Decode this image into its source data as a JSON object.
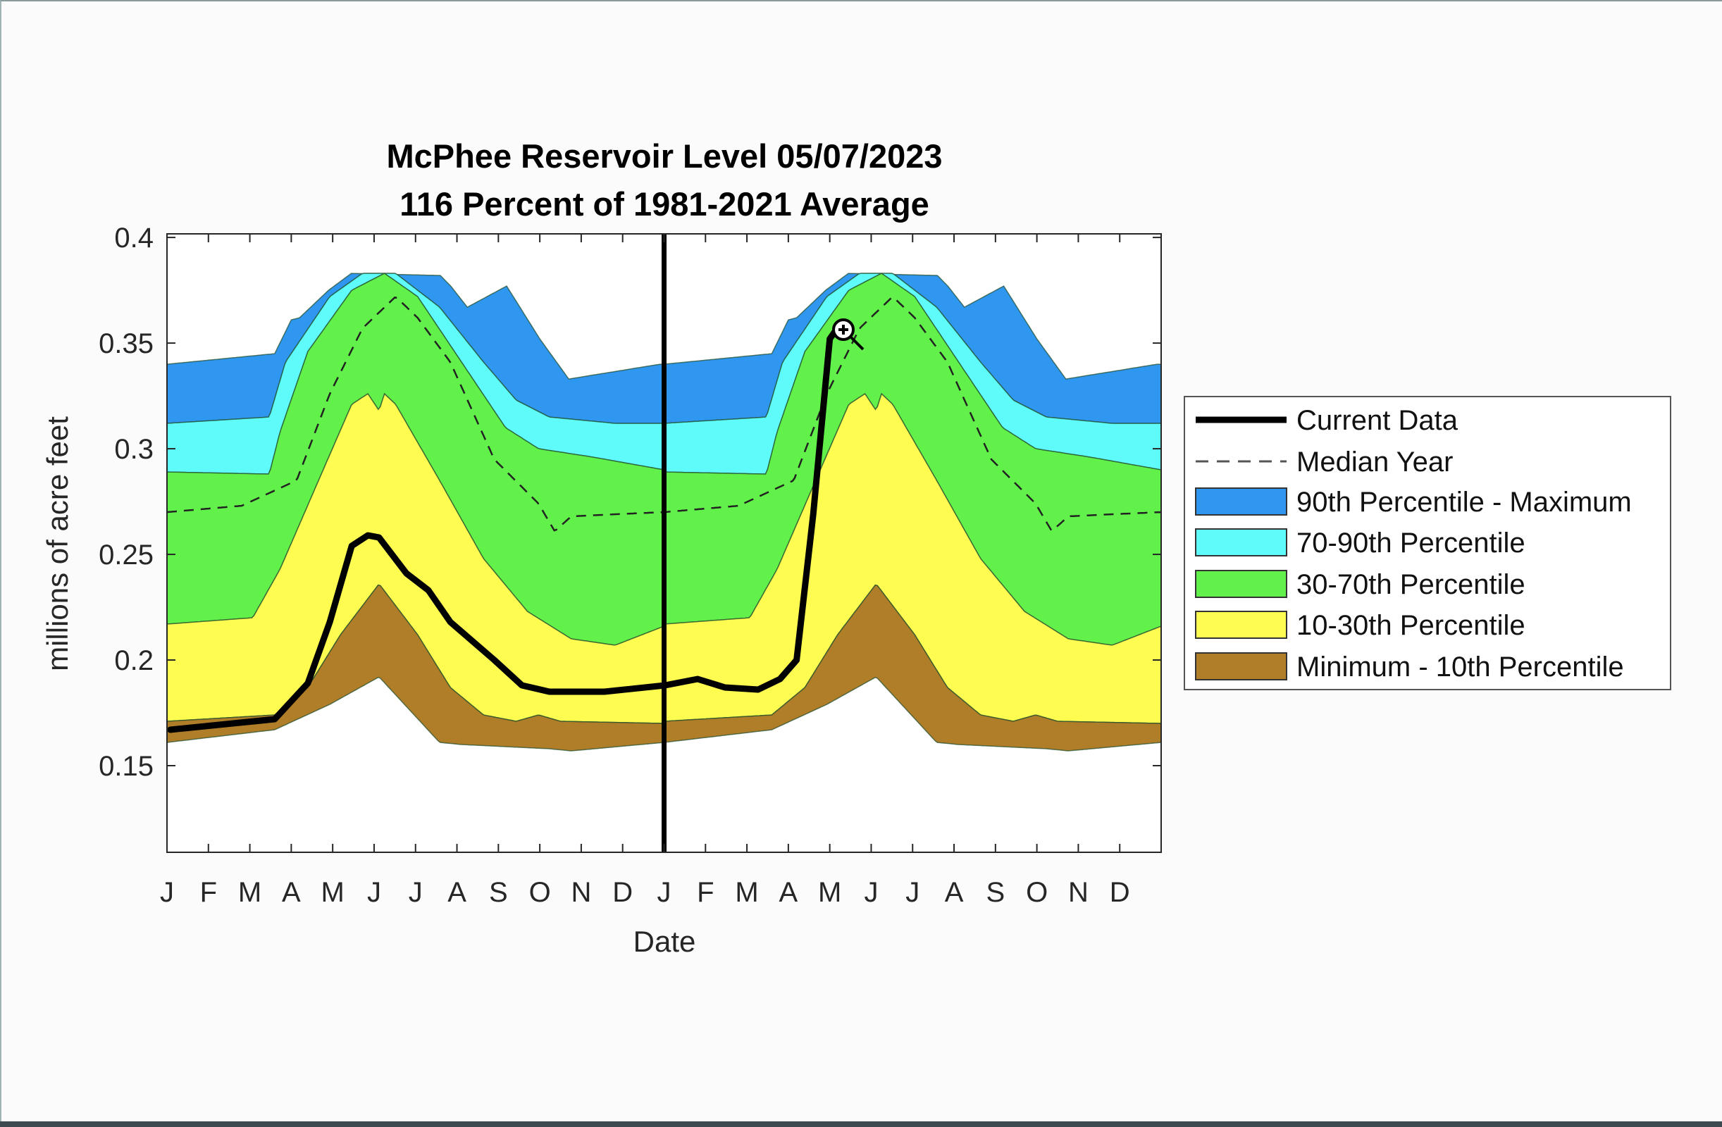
{
  "chart_data": {
    "type": "area",
    "title": "McPhee Reservoir Level 05/07/2023",
    "subtitle": "116 Percent of 1981-2021 Average",
    "xlabel": "Date",
    "ylabel": "millions of acre feet",
    "ylim": [
      0.109,
      0.4017
    ],
    "xlim_months": [
      0,
      24
    ],
    "x_tick_labels": [
      "J",
      "F",
      "M",
      "A",
      "M",
      "J",
      "J",
      "A",
      "S",
      "O",
      "N",
      "D",
      "J",
      "F",
      "M",
      "A",
      "M",
      "J",
      "J",
      "A",
      "S",
      "O",
      "N",
      "D"
    ],
    "y_ticks": [
      0.15,
      0.2,
      0.25,
      0.3,
      0.35,
      0.4
    ],
    "y_tick_labels": [
      "0.15",
      "0.2",
      "0.25",
      "0.3",
      "0.35",
      "0.4"
    ],
    "year_divider_month": 12,
    "percentile_boundaries_one_year": {
      "maximum": [
        [
          0,
          0.34
        ],
        [
          2.6,
          0.345
        ],
        [
          3.0,
          0.361
        ],
        [
          3.2,
          0.362
        ],
        [
          3.9,
          0.375
        ],
        [
          4.45,
          0.383
        ],
        [
          6.6,
          0.382
        ],
        [
          6.85,
          0.377
        ],
        [
          7.25,
          0.367
        ],
        [
          8.2,
          0.377
        ],
        [
          9.0,
          0.352
        ],
        [
          9.7,
          0.333
        ],
        [
          11.9,
          0.34
        ],
        [
          12,
          0.34
        ]
      ],
      "p90": [
        [
          0,
          0.312
        ],
        [
          2.47,
          0.315
        ],
        [
          2.86,
          0.341
        ],
        [
          3.93,
          0.372
        ],
        [
          4.72,
          0.383
        ],
        [
          5.52,
          0.383
        ],
        [
          6.58,
          0.367
        ],
        [
          7.64,
          0.341
        ],
        [
          8.43,
          0.323
        ],
        [
          9.23,
          0.315
        ],
        [
          10.82,
          0.312
        ],
        [
          12,
          0.312
        ]
      ],
      "p70": [
        [
          0,
          0.289
        ],
        [
          2.47,
          0.288
        ],
        [
          2.73,
          0.308
        ],
        [
          3.4,
          0.346
        ],
        [
          4.46,
          0.375
        ],
        [
          5.25,
          0.383
        ],
        [
          6.05,
          0.372
        ],
        [
          7.11,
          0.341
        ],
        [
          8.17,
          0.31
        ],
        [
          8.97,
          0.3
        ],
        [
          10.29,
          0.296
        ],
        [
          12,
          0.29
        ]
      ],
      "p30": [
        [
          0,
          0.217
        ],
        [
          2.07,
          0.22
        ],
        [
          2.73,
          0.243
        ],
        [
          3.66,
          0.285
        ],
        [
          4.46,
          0.321
        ],
        [
          4.85,
          0.326
        ],
        [
          5.12,
          0.318
        ],
        [
          5.25,
          0.326
        ],
        [
          5.52,
          0.321
        ],
        [
          6.58,
          0.285
        ],
        [
          7.64,
          0.248
        ],
        [
          8.7,
          0.223
        ],
        [
          9.76,
          0.21
        ],
        [
          10.82,
          0.207
        ],
        [
          12,
          0.216
        ]
      ],
      "median": [
        [
          0,
          0.27
        ],
        [
          1.8,
          0.273
        ],
        [
          3.13,
          0.285
        ],
        [
          3.93,
          0.326
        ],
        [
          4.72,
          0.357
        ],
        [
          5.52,
          0.372
        ],
        [
          6.05,
          0.362
        ],
        [
          6.84,
          0.341
        ],
        [
          7.9,
          0.295
        ],
        [
          8.97,
          0.274
        ],
        [
          9.36,
          0.261
        ],
        [
          9.76,
          0.268
        ],
        [
          10.82,
          0.269
        ],
        [
          12,
          0.27
        ]
      ],
      "p10": [
        [
          0,
          0.171
        ],
        [
          2.6,
          0.174
        ],
        [
          3.4,
          0.187
        ],
        [
          4.19,
          0.212
        ],
        [
          5.12,
          0.236
        ],
        [
          6.05,
          0.212
        ],
        [
          6.84,
          0.187
        ],
        [
          7.64,
          0.174
        ],
        [
          8.43,
          0.171
        ],
        [
          8.97,
          0.174
        ],
        [
          9.5,
          0.171
        ],
        [
          12,
          0.17
        ]
      ],
      "minimum": [
        [
          0,
          0.161
        ],
        [
          2.6,
          0.167
        ],
        [
          3.93,
          0.179
        ],
        [
          5.12,
          0.192
        ],
        [
          6.58,
          0.161
        ],
        [
          7.11,
          0.16
        ],
        [
          9.23,
          0.158
        ],
        [
          9.76,
          0.157
        ],
        [
          12,
          0.161
        ]
      ]
    },
    "current_data": [
      [
        0.08,
        0.167
      ],
      [
        2.6,
        0.172
      ],
      [
        3.4,
        0.189
      ],
      [
        3.93,
        0.218
      ],
      [
        4.46,
        0.254
      ],
      [
        4.85,
        0.259
      ],
      [
        5.12,
        0.258
      ],
      [
        5.78,
        0.241
      ],
      [
        6.31,
        0.233
      ],
      [
        6.84,
        0.218
      ],
      [
        7.9,
        0.2
      ],
      [
        8.57,
        0.188
      ],
      [
        9.23,
        0.185
      ],
      [
        10.56,
        0.185
      ],
      [
        12.02,
        0.188
      ],
      [
        12.81,
        0.191
      ],
      [
        13.47,
        0.187
      ],
      [
        14.27,
        0.186
      ],
      [
        14.8,
        0.191
      ],
      [
        15.2,
        0.2
      ],
      [
        15.6,
        0.269
      ],
      [
        16.0,
        0.352
      ],
      [
        16.18,
        0.357
      ]
    ],
    "legend": {
      "placement": "right",
      "entries": [
        {
          "label": "Current Data",
          "kind": "line"
        },
        {
          "label": "Median Year",
          "kind": "dashed"
        },
        {
          "label": "90th Percentile - Maximum",
          "kind": "patch",
          "color": "#2f97ef"
        },
        {
          "label": "70-90th Percentile",
          "kind": "patch",
          "color": "#5ffbfb"
        },
        {
          "label": "30-70th Percentile",
          "kind": "patch",
          "color": "#62f04a"
        },
        {
          "label": "10-30th Percentile",
          "kind": "patch",
          "color": "#fefb51"
        },
        {
          "label": "Minimum - 10th Percentile",
          "kind": "patch",
          "color": "#b07e28"
        }
      ]
    }
  }
}
